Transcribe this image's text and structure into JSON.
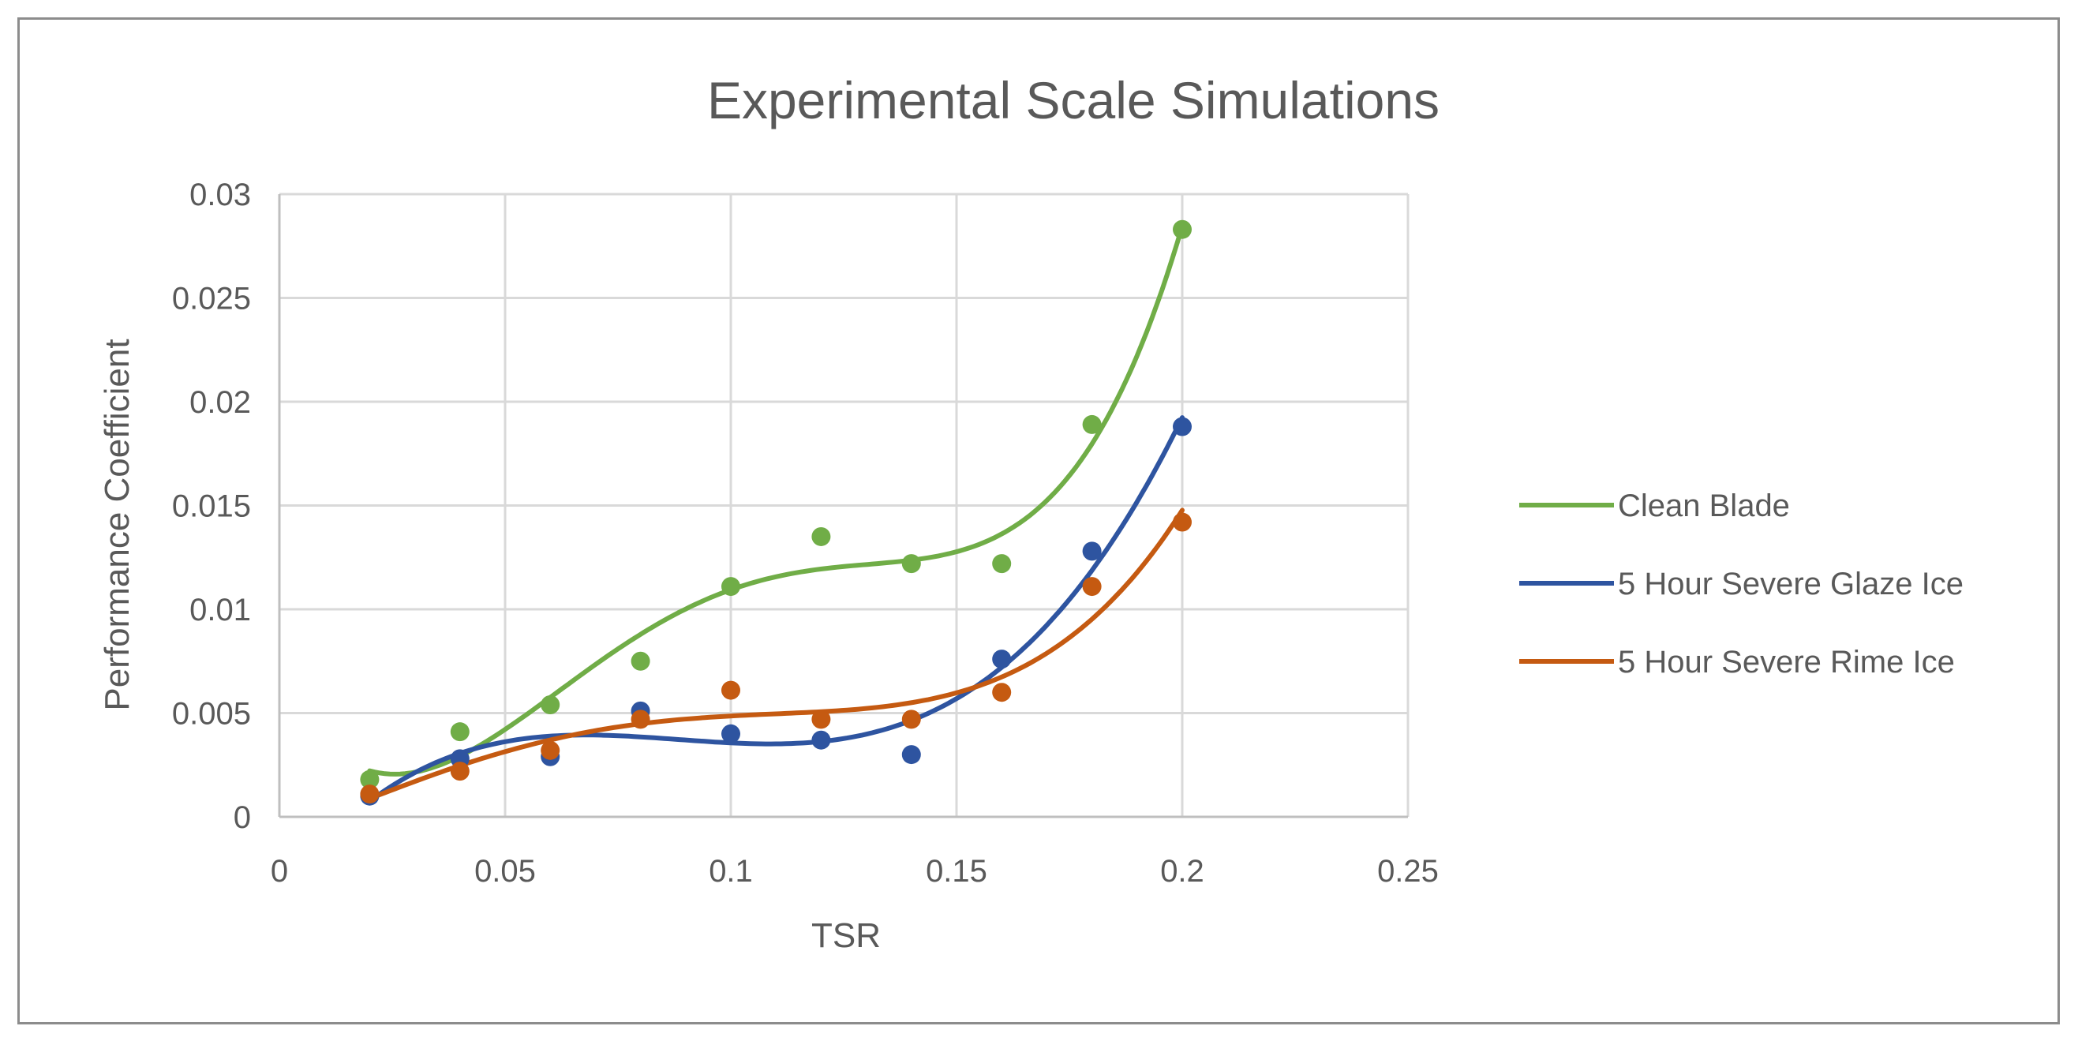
{
  "chart_data": {
    "type": "scatter",
    "title": "Experimental Scale Simulations",
    "xlabel": "TSR",
    "ylabel": "Performance Coefficient",
    "xlim": [
      0,
      0.25
    ],
    "ylim": [
      0,
      0.03
    ],
    "xticks": [
      0,
      0.05,
      0.1,
      0.15,
      0.2,
      0.25
    ],
    "xtick_labels": [
      "0",
      "0.05",
      "0.1",
      "0.15",
      "0.2",
      "0.25"
    ],
    "yticks": [
      0,
      0.005,
      0.01,
      0.015,
      0.02,
      0.025,
      0.03
    ],
    "ytick_labels": [
      "0",
      "0.005",
      "0.01",
      "0.015",
      "0.02",
      "0.025",
      "0.03"
    ],
    "grid": true,
    "legend_position": "right",
    "trendline": "polynomial",
    "x": [
      0.02,
      0.04,
      0.06,
      0.08,
      0.1,
      0.12,
      0.14,
      0.16,
      0.18,
      0.2
    ],
    "series": [
      {
        "name": "Clean Blade",
        "color": "#70ad47",
        "values": [
          0.0018,
          0.0041,
          0.0054,
          0.0075,
          0.0111,
          0.0135,
          0.0122,
          0.0122,
          0.0189,
          0.0283
        ]
      },
      {
        "name": "5 Hour Severe Glaze Ice",
        "color": "#2e54a0",
        "values": [
          0.001,
          0.0028,
          0.0029,
          0.0051,
          0.004,
          0.0037,
          0.003,
          0.0076,
          0.0128,
          0.0188
        ]
      },
      {
        "name": "5 Hour Severe Rime Ice",
        "color": "#c55a11",
        "values": [
          0.0011,
          0.0022,
          0.0032,
          0.0047,
          0.0061,
          0.0047,
          0.0047,
          0.006,
          0.0111,
          0.0142
        ]
      }
    ]
  }
}
